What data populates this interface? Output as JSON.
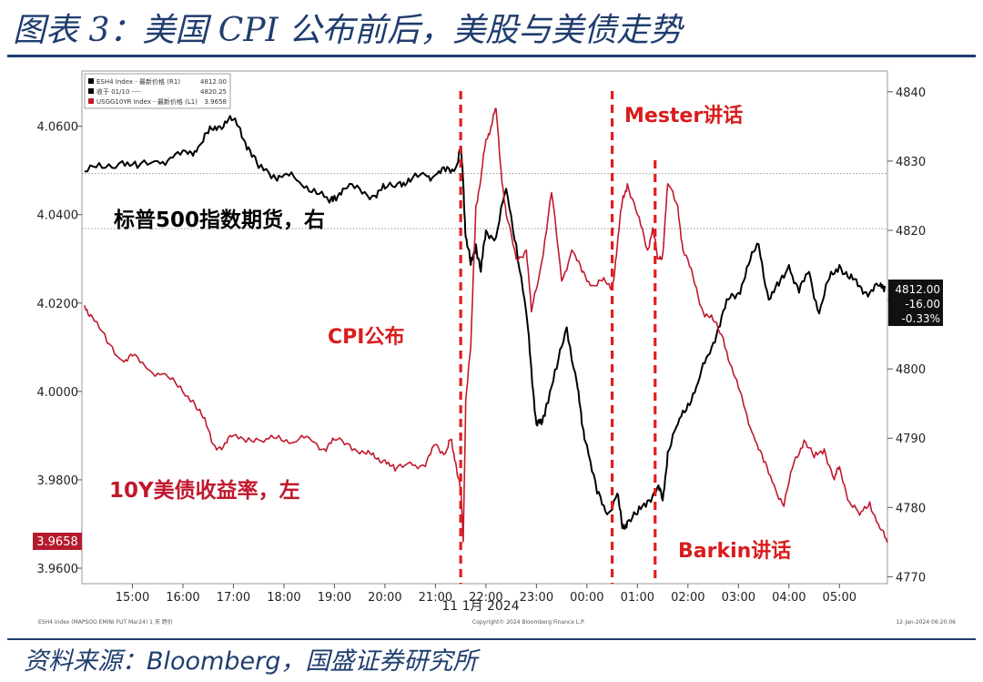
{
  "title": "图表 3：美国 CPI 公布前后，美股与美债走势",
  "source": {
    "prefix": "资料来源：",
    "brand": "Bloomberg",
    "suffix": "，国盛证券研究所"
  },
  "colors": {
    "spx": "#000000",
    "yield": "#c0182e",
    "event_line": "#e01e1e",
    "title": "#1f3d6e"
  },
  "chart_data": {
    "type": "line",
    "legend": {
      "placement": "top-left",
      "entries": [
        {
          "label": "ESH4 Index - 最新价格 (R1)",
          "value": "4812.00"
        },
        {
          "label": "收于 01/10 ----",
          "value": "4820.25"
        },
        {
          "label": "USGG10YR Index - 最新价格 (L1)",
          "value": "3.9658"
        }
      ]
    },
    "x_ticks": [
      "15:00",
      "16:00",
      "17:00",
      "18:00",
      "19:00",
      "20:00",
      "21:00",
      "22:00",
      "23:00",
      "00:00",
      "01:00",
      "02:00",
      "03:00",
      "04:00",
      "05:00"
    ],
    "x_date_label": "11 1月 2024",
    "left_axis": {
      "ticks": [
        "4.0600",
        "4.0400",
        "4.0200",
        "4.0000",
        "3.9800",
        "3.9600"
      ],
      "range": [
        3.9565,
        4.0725
      ]
    },
    "right_axis": {
      "ticks": [
        "4840",
        "4830",
        "4820",
        "4810",
        "4800",
        "4790",
        "4780",
        "4770"
      ],
      "range": [
        4769,
        4843
      ]
    },
    "reference_lines": [
      {
        "axis": "right",
        "value": 4828.2
      },
      {
        "axis": "right",
        "value": 4820.25
      }
    ],
    "current_value_boxes": {
      "left": "3.9658",
      "right": [
        "4812.00",
        "-16.00",
        "-0.33%"
      ]
    },
    "series": [
      {
        "axis": "right",
        "x": [
          14.05,
          14.4,
          14.8,
          15.1,
          15.5,
          15.8,
          16.1,
          16.3,
          16.5,
          16.7,
          16.9,
          17.1,
          17.3,
          17.5,
          17.8,
          18.0,
          18.3,
          18.6,
          18.9,
          19.0,
          19.2,
          19.5,
          19.8,
          20.0,
          20.3,
          20.5,
          20.8,
          21.0,
          21.2,
          21.4,
          21.5,
          21.55,
          21.6,
          21.7,
          21.8,
          21.9,
          22.0,
          22.2,
          22.4,
          22.6,
          22.8,
          22.9,
          23.0,
          23.1,
          23.2,
          23.4,
          23.6,
          23.8,
          23.9,
          24.0,
          24.2,
          24.4,
          24.6,
          24.7,
          24.8,
          25.0,
          25.2,
          25.4,
          25.5,
          25.6,
          25.8,
          26.0,
          26.2,
          26.4,
          26.6,
          26.8,
          27.0,
          27.2,
          27.4,
          27.6,
          27.8,
          28.0,
          28.2,
          28.4,
          28.6,
          28.8,
          29.0,
          29.2,
          29.4,
          29.6,
          29.8,
          29.9
        ],
        "values": [
          4828.5,
          4829,
          4830,
          4829,
          4830,
          4830.5,
          4831,
          4832,
          4834,
          4835,
          4836,
          4835,
          4832,
          4829,
          4828,
          4828,
          4827,
          4826,
          4824,
          4825,
          4826,
          4826,
          4825,
          4826,
          4827,
          4827,
          4828,
          4828,
          4828.5,
          4829,
          4832,
          4827,
          4819,
          4815,
          4818,
          4814,
          4820,
          4819,
          4826,
          4818,
          4808,
          4800,
          4792,
          4792,
          4795,
          4800,
          4806,
          4798,
          4792,
          4789,
          4782,
          4779,
          4782,
          4777,
          4778,
          4779,
          4781,
          4783,
          4781,
          4788,
          4792,
          4795,
          4798,
          4802,
          4806,
          4810,
          4811,
          4815,
          4818,
          4810,
          4812,
          4815,
          4811,
          4814,
          4808,
          4813,
          4815,
          4813,
          4812,
          4811,
          4812,
          4812
        ]
      },
      {
        "axis": "left",
        "x": [
          14.05,
          14.2,
          14.5,
          14.8,
          15.0,
          15.3,
          15.6,
          15.9,
          16.2,
          16.4,
          16.6,
          16.8,
          17.0,
          17.3,
          17.6,
          17.9,
          18.2,
          18.5,
          18.8,
          19.0,
          19.3,
          19.6,
          19.8,
          20.0,
          20.2,
          20.5,
          20.8,
          21.0,
          21.2,
          21.3,
          21.4,
          21.5,
          21.55,
          21.6,
          21.7,
          21.8,
          21.9,
          22.0,
          22.1,
          22.2,
          22.3,
          22.4,
          22.6,
          22.8,
          22.9,
          23.1,
          23.3,
          23.5,
          23.7,
          23.9,
          24.1,
          24.3,
          24.5,
          24.6,
          24.7,
          24.8,
          25.0,
          25.2,
          25.3,
          25.4,
          25.5,
          25.6,
          25.8,
          25.9,
          26.1,
          26.3,
          26.5,
          26.7,
          26.9,
          27.1,
          27.3,
          27.5,
          27.7,
          27.9,
          28.1,
          28.3,
          28.5,
          28.7,
          28.9,
          29.0,
          29.2,
          29.4,
          29.6,
          29.8,
          29.95
        ],
        "values": [
          4.0195,
          4.017,
          4.011,
          4.007,
          4.008,
          4.005,
          4.004,
          4.001,
          3.998,
          3.994,
          3.988,
          3.9875,
          3.99,
          3.9895,
          3.9885,
          3.99,
          3.9885,
          3.9895,
          3.987,
          3.989,
          3.988,
          3.986,
          3.985,
          3.9845,
          3.982,
          3.984,
          3.983,
          3.988,
          3.986,
          3.989,
          3.984,
          3.978,
          3.966,
          3.998,
          4.01,
          4.042,
          4.048,
          4.057,
          4.06,
          4.064,
          4.05,
          4.04,
          4.03,
          4.032,
          4.018,
          4.029,
          4.045,
          4.025,
          4.032,
          4.027,
          4.024,
          4.025,
          4.023,
          4.033,
          4.043,
          4.047,
          4.04,
          4.032,
          4.037,
          4.03,
          4.031,
          4.047,
          4.042,
          4.032,
          4.026,
          4.018,
          4.016,
          4.012,
          4.004,
          3.997,
          3.99,
          3.984,
          3.979,
          3.974,
          3.984,
          3.989,
          3.985,
          3.987,
          3.98,
          3.983,
          3.975,
          3.972,
          3.975,
          3.969,
          3.9658
        ]
      }
    ],
    "event_lines": [
      21.5,
      24.5,
      25.35
    ],
    "annotations": {
      "spx": "标普500指数期货，右",
      "yield": "10Y美债收益率，左",
      "cpi": "CPI公布",
      "mester": "Mester讲话",
      "barkin": "Barkin讲话"
    },
    "footer": {
      "left": "ESH4 Index (MAPSOO EMINI FUT Mar24) 1 天 跨价",
      "center": "Copyright© 2024 Bloomberg Finance L.P.",
      "right": "12-Jan-2024 06:20:06"
    }
  }
}
